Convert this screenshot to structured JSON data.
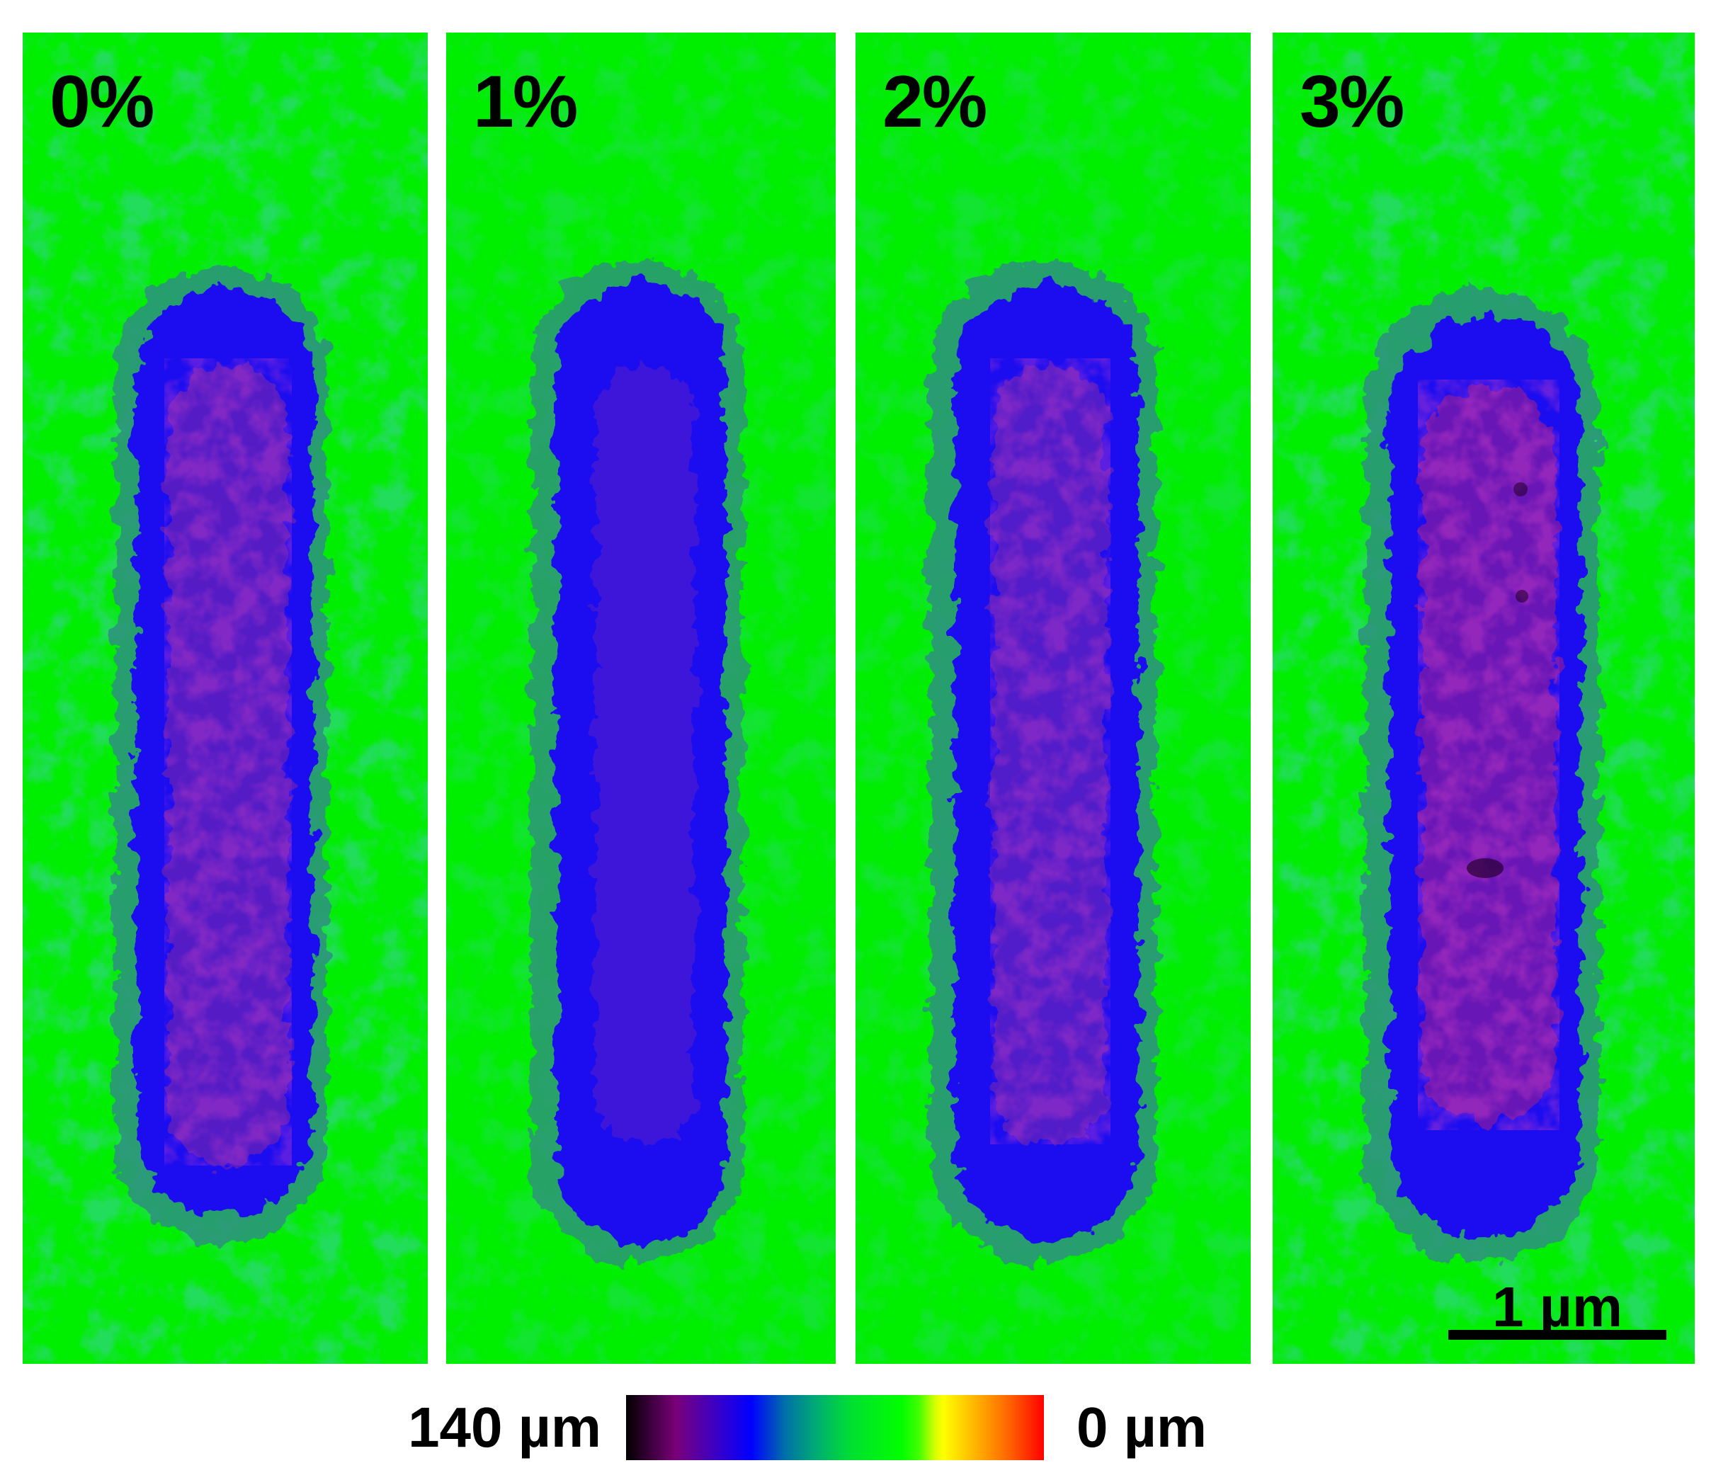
{
  "panels": [
    {
      "label": "0%"
    },
    {
      "label": "1%"
    },
    {
      "label": "2%"
    },
    {
      "label": "3%"
    }
  ],
  "scale_bar": {
    "label": "1 µm"
  },
  "colorbar": {
    "left_label": "140 µm",
    "right_label": "0 µm",
    "colors": [
      "#000000",
      "#7a007a",
      "#0000ff",
      "#00b070",
      "#00ff00",
      "#ffff00",
      "#ff0000"
    ]
  },
  "colors": {
    "background_green": "#00ee00",
    "blue_ring": "#1a10f0",
    "core_magenta": "#7a1aa8"
  }
}
